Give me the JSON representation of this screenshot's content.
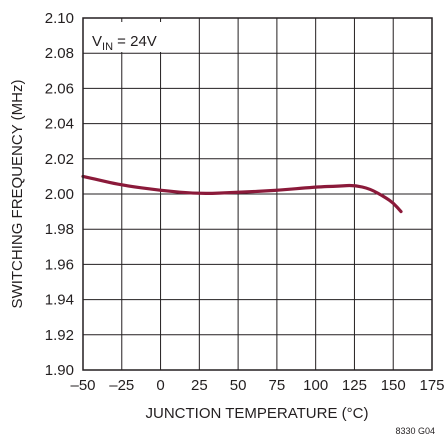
{
  "chart_data": {
    "type": "line",
    "title": "",
    "xlabel": "JUNCTION TEMPERATURE (°C)",
    "ylabel": "SWITCHING FREQUENCY (MHz)",
    "xlim": [
      -50,
      175
    ],
    "ylim": [
      1.9,
      2.1
    ],
    "x_ticks": [
      "–50",
      "–25",
      "0",
      "25",
      "50",
      "75",
      "100",
      "125",
      "150",
      "175"
    ],
    "y_ticks": [
      "1.90",
      "1.92",
      "1.94",
      "1.96",
      "1.98",
      "2.00",
      "2.02",
      "2.04",
      "2.06",
      "2.08",
      "2.10"
    ],
    "grid": true,
    "series": [
      {
        "color": "#8b1a3a",
        "x": [
          -50,
          -40,
          -25,
          0,
          25,
          50,
          75,
          100,
          115,
          125,
          135,
          145,
          150,
          155
        ],
        "y": [
          2.01,
          2.008,
          2.005,
          2.002,
          2.0,
          2.001,
          2.002,
          2.004,
          2.0045,
          2.005,
          2.003,
          1.998,
          1.995,
          1.99
        ]
      }
    ],
    "annotation": {
      "prefix": "V",
      "subscript": "IN",
      "suffix": " = 24V"
    },
    "figure_code": "8330 G04"
  }
}
